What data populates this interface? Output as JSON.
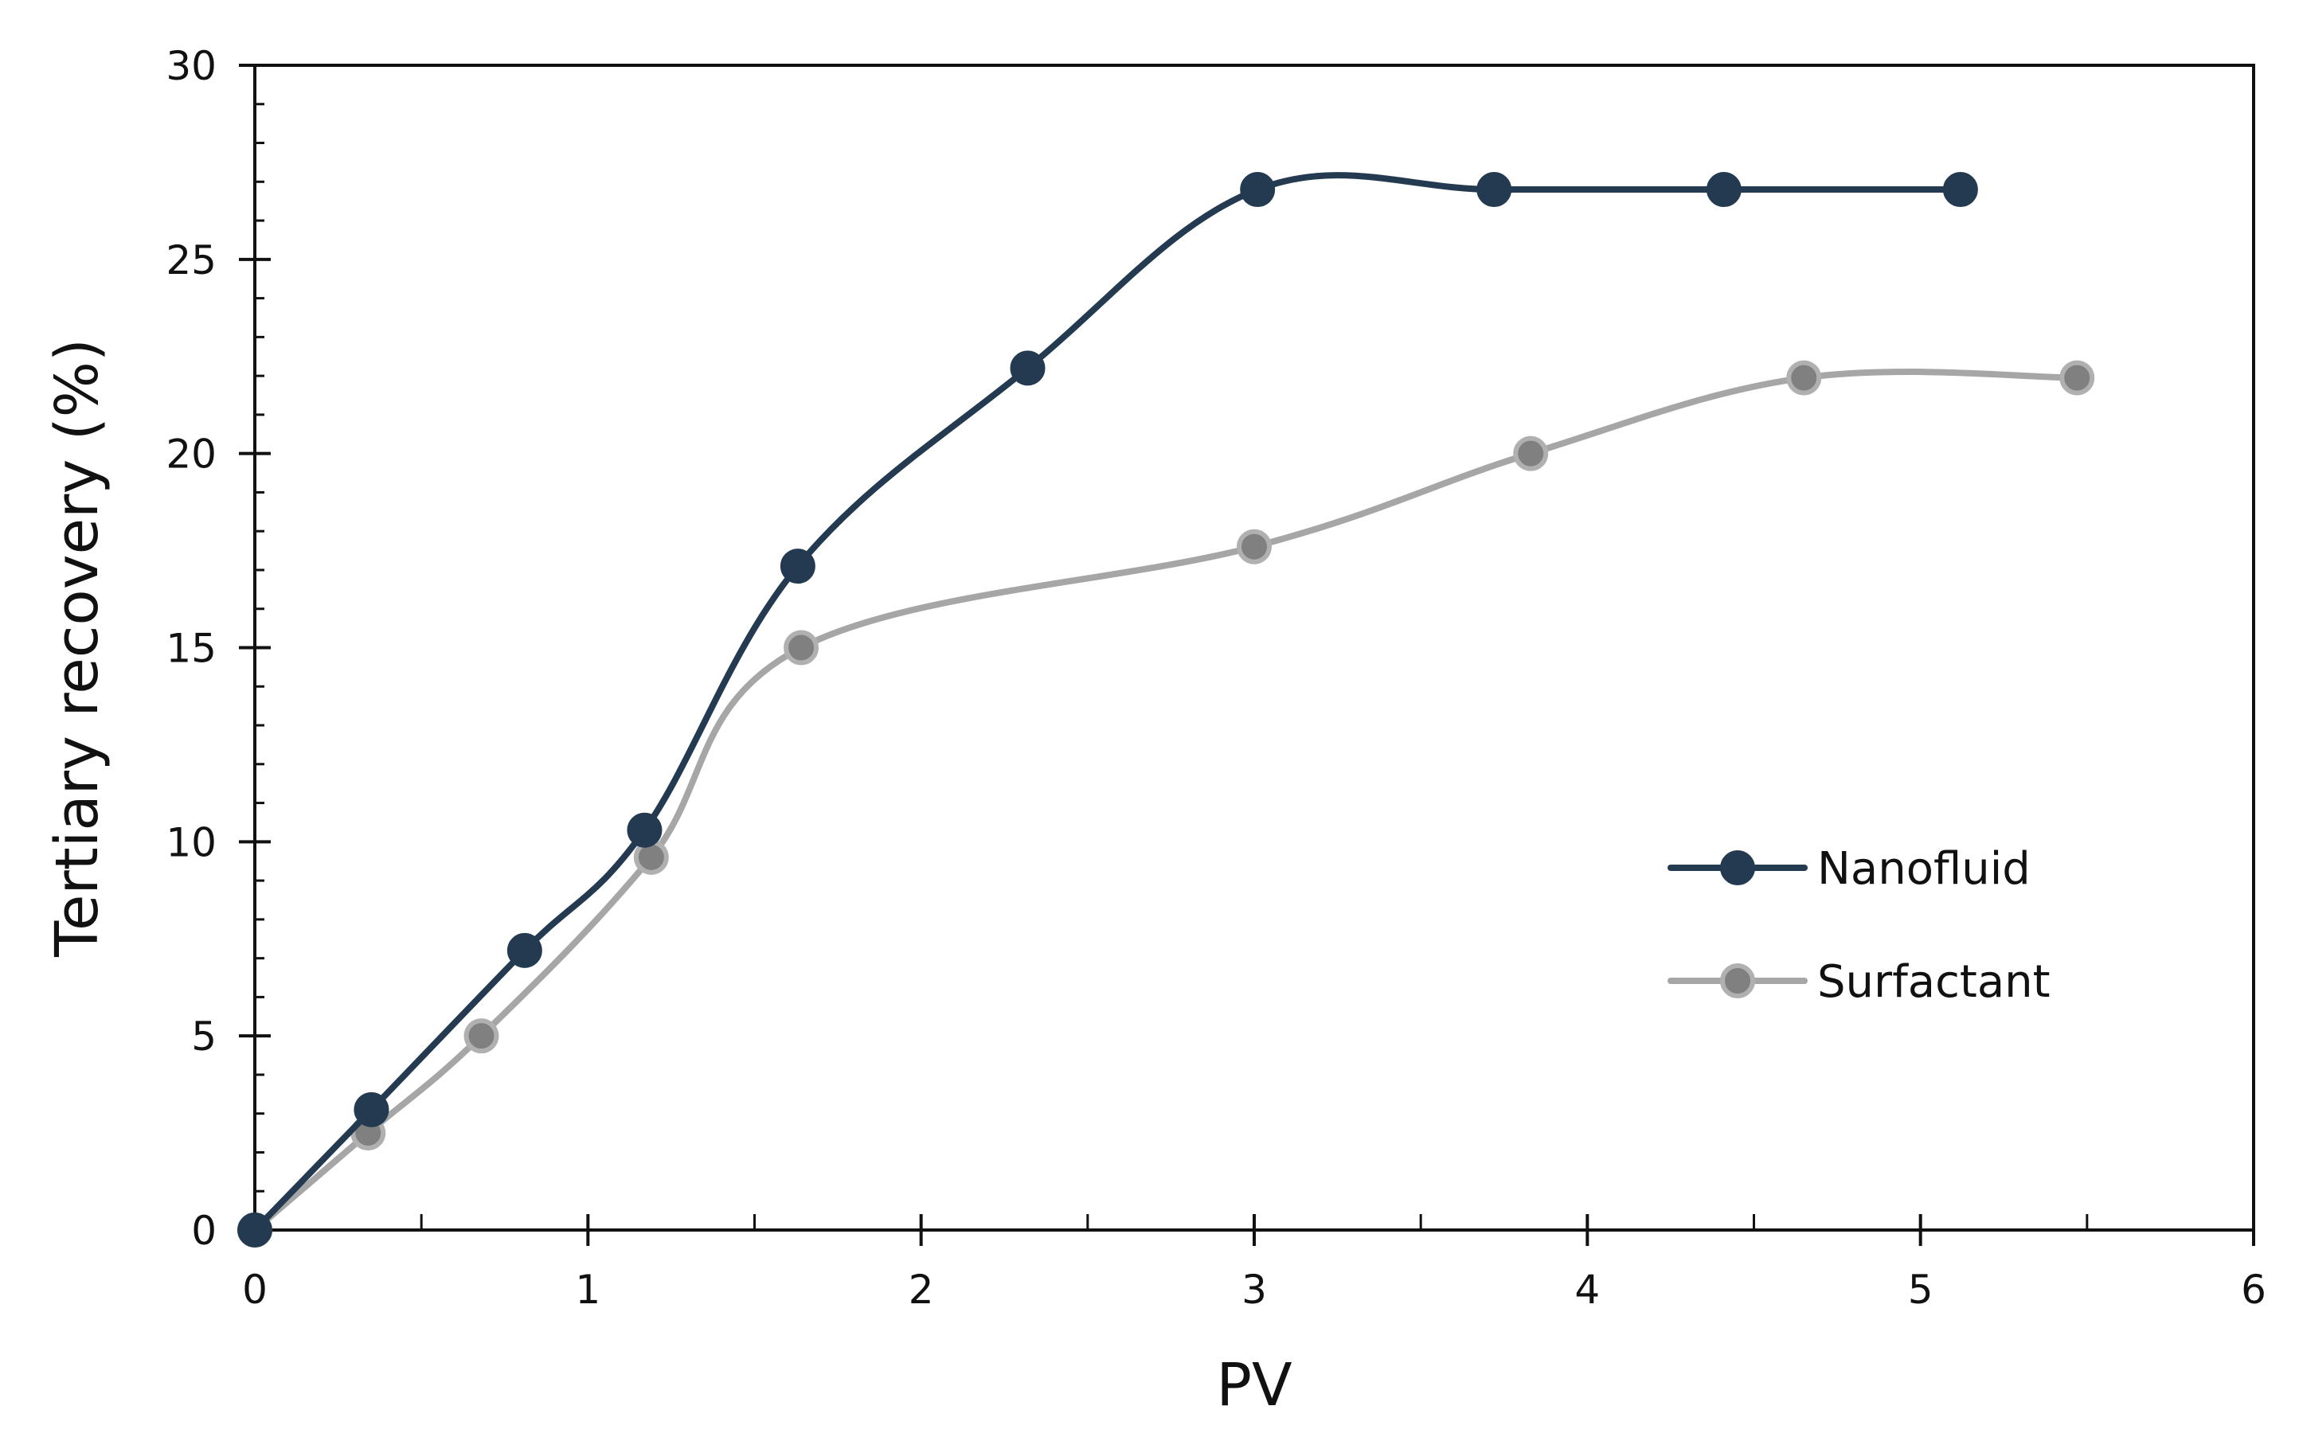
{
  "chart_data": {
    "type": "line",
    "title": "",
    "xlabel": "PV",
    "ylabel": "Tertiary recovery (%)",
    "xlim": [
      0,
      6
    ],
    "ylim": [
      0,
      30
    ],
    "x_major_step": 1,
    "x_minor_step": 0.5,
    "y_major_step": 5,
    "y_minor_step": 1,
    "x_tick_labels": [
      "0",
      "1",
      "2",
      "3",
      "4",
      "5",
      "6"
    ],
    "y_tick_labels": [
      "0",
      "5",
      "10",
      "15",
      "20",
      "25",
      "30"
    ],
    "grid": false,
    "legend_position": "right-middle",
    "series": [
      {
        "name": "Nanofluid",
        "color": "#243a51",
        "marker_fill": "#243a51",
        "marker_stroke": "#243a51",
        "x": [
          0,
          0.35,
          0.81,
          1.17,
          1.63,
          2.32,
          3.01,
          3.72,
          4.41,
          5.12
        ],
        "y": [
          0,
          3.1,
          7.2,
          10.3,
          17.1,
          22.2,
          26.8,
          26.8,
          26.8,
          26.8
        ]
      },
      {
        "name": "Surfactant",
        "color": "#a6a6a6",
        "marker_fill": "#808080",
        "marker_stroke": "#b0b0b0",
        "x": [
          0,
          0.34,
          0.68,
          1.19,
          1.64,
          3.0,
          3.83,
          4.65,
          5.47
        ],
        "y": [
          0,
          2.5,
          5.0,
          9.6,
          15.0,
          17.6,
          20.0,
          21.95,
          21.95
        ]
      }
    ]
  }
}
